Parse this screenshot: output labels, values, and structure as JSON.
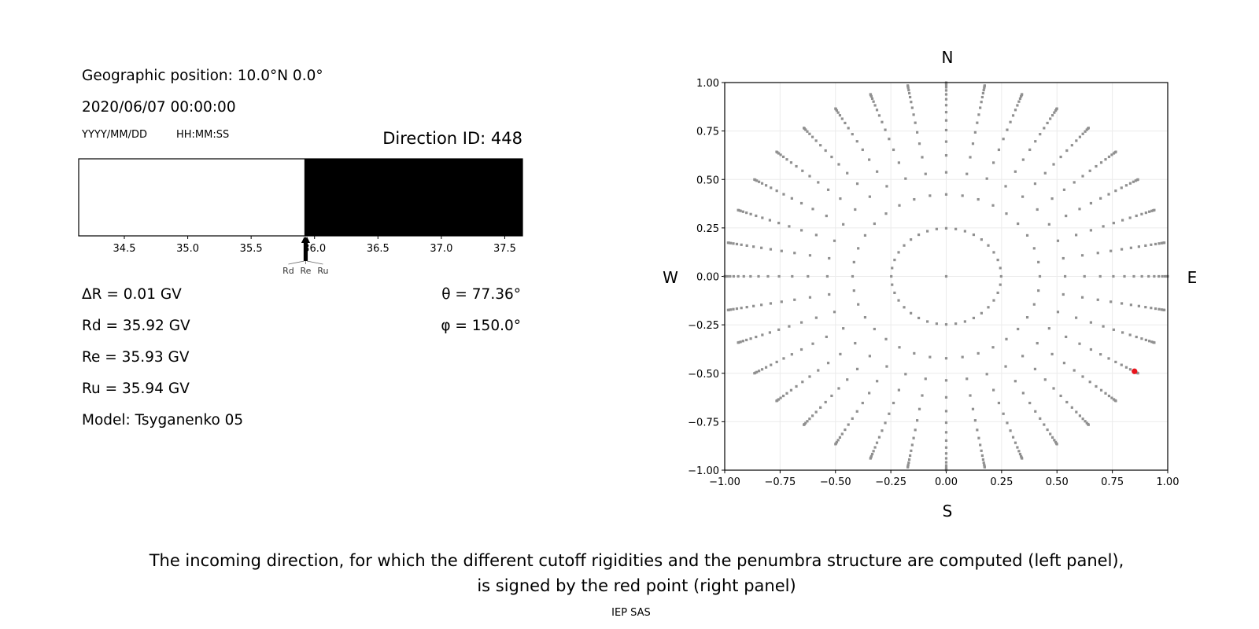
{
  "info": {
    "geo_position": "Geographic position: 10.0°N 0.0°",
    "datetime": "2020/06/07 00:00:00",
    "date_format": "YYYY/MM/DD",
    "time_format": "HH:MM:SS",
    "direction_id": "Direction ID: 448",
    "delta_r": "ΔR = 0.01 GV",
    "rd": "Rd = 35.92 GV",
    "re": "Re = 35.93 GV",
    "ru": "Ru = 35.94 GV",
    "model": "Model: Tsyganenko 05",
    "theta": "θ = 77.36°",
    "phi": "φ = 150.0°"
  },
  "caption": {
    "line1": "The incoming direction, for which the different cutoff rigidities and the penumbra structure are computed (left panel),",
    "line2": "is signed by the red point (right panel)",
    "credit": "IEP SAS"
  },
  "chart_data": [
    {
      "type": "bar",
      "subtype": "penumbra-strip",
      "xlim": [
        34.14,
        37.64
      ],
      "xticks": [
        "34.5",
        "35.0",
        "35.5",
        "36.0",
        "36.5",
        "37.0",
        "37.5"
      ],
      "xtick_values": [
        34.5,
        35.0,
        35.5,
        36.0,
        36.5,
        37.0,
        37.5
      ],
      "segments": [
        {
          "from": 34.14,
          "to": 35.92,
          "color": "#ffffff"
        },
        {
          "from": 35.92,
          "to": 37.64,
          "color": "#000000"
        }
      ],
      "markers": [
        {
          "label": "Rd",
          "value": 35.92
        },
        {
          "label": "Re",
          "value": 35.93
        },
        {
          "label": "Ru",
          "value": 35.94
        }
      ]
    },
    {
      "type": "scatter",
      "xlim": [
        -1.0,
        1.0
      ],
      "ylim": [
        -1.0,
        1.0
      ],
      "grid": true,
      "xticks": [
        "−1.00",
        "−0.75",
        "−0.50",
        "−0.25",
        "0.00",
        "0.25",
        "0.50",
        "0.75",
        "1.00"
      ],
      "yticks": [
        "−1.00",
        "−0.75",
        "−0.50",
        "−0.25",
        "0.00",
        "0.25",
        "0.50",
        "0.75",
        "1.00"
      ],
      "tick_values": [
        -1.0,
        -0.75,
        -0.5,
        -0.25,
        0.0,
        0.25,
        0.5,
        0.75,
        1.0
      ],
      "compass": {
        "north": "N",
        "south": "S",
        "west": "W",
        "east": "E"
      },
      "directions_grid": {
        "rings": 16,
        "azimuths_per_ring": 36,
        "azimuth_step_deg": 10,
        "center_point": true
      },
      "point_color": "#909090",
      "selected_point": {
        "x": 0.85,
        "y": -0.49,
        "theta_deg": 77.36,
        "phi_deg": 150.0,
        "color": "#e8141c"
      }
    }
  ]
}
